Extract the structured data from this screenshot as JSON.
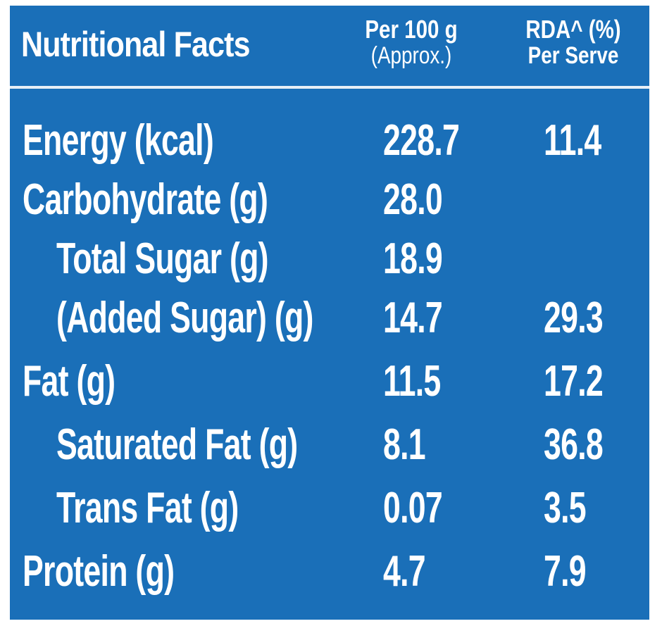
{
  "header": {
    "title": "Nutritional Facts",
    "col1_line1": "Per 100 g",
    "col1_line2": "(Approx.)",
    "col2_line1": "RDA^ (%)",
    "col2_line2": "Per Serve"
  },
  "rows": [
    {
      "label": "Energy (kcal)",
      "per100": "228.7",
      "rda": "11.4",
      "indent": false
    },
    {
      "label": "Carbohydrate (g)",
      "per100": "28.0",
      "rda": "",
      "indent": false
    },
    {
      "label": "Total Sugar (g)",
      "per100": "18.9",
      "rda": "",
      "indent": true
    },
    {
      "label": "(Added Sugar) (g)",
      "per100": "14.7",
      "rda": "29.3",
      "indent": true
    },
    {
      "label": "Fat (g)",
      "per100": "11.5",
      "rda": "17.2",
      "indent": false
    },
    {
      "label": "Saturated Fat (g)",
      "per100": "8.1",
      "rda": "36.8",
      "indent": true
    },
    {
      "label": "Trans Fat (g)",
      "per100": "0.07",
      "rda": "3.5",
      "indent": true
    },
    {
      "label": "Protein (g)",
      "per100": "4.7",
      "rda": "7.9",
      "indent": false
    }
  ],
  "colors": {
    "background": "#1a6fb8",
    "text": "#ffffff"
  }
}
